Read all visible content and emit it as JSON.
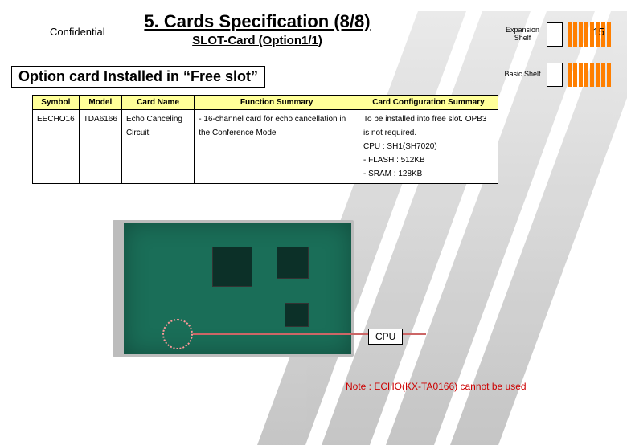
{
  "title": "5. Cards Specification (8/8)",
  "subtitle": "SLOT-Card (Option1/1)",
  "option_label": "Option card Installed in “Free slot”",
  "shelves": {
    "expansion": {
      "label": "Expansion Shelf",
      "bar_count": 8,
      "bar_color": "#ff7f00"
    },
    "basic": {
      "label": "Basic Shelf",
      "bar_count": 8,
      "bar_color": "#ff7f00"
    }
  },
  "table": {
    "header_bg": "#ffff99",
    "columns": [
      "Symbol",
      "Model",
      "Card Name",
      "Function Summary",
      "Card Configuration Summary"
    ],
    "rows": [
      [
        "EECHO16",
        "TDA6166",
        "Echo Canceling Circuit",
        "- 16-channel card for echo cancellation in the Conference Mode",
        "To be installed into free slot. OPB3 is not required.\nCPU : SH1(SH7020)\n- FLASH : 512KB\n- SRAM : 128KB"
      ]
    ]
  },
  "pcb": {
    "board_color": "#1a6e58",
    "frame_color": "#bcbcbc",
    "cpu_circle_color": "#ff9999",
    "cpu_line_color": "#cc6666"
  },
  "cpu_label": "CPU",
  "note": "Note : ECHO(KX-TA0166) cannot be used",
  "note_color": "#cc0000",
  "footer": {
    "confidential": "Confidential",
    "page": "15"
  }
}
